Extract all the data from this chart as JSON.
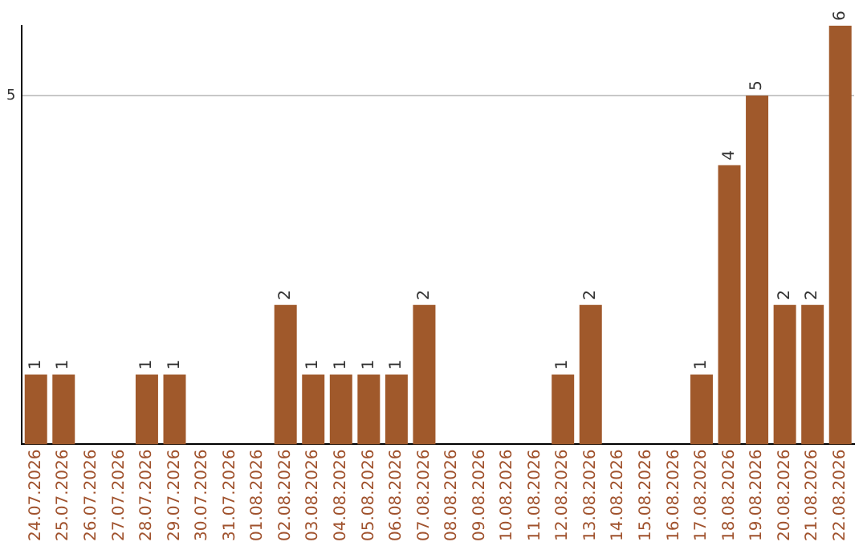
{
  "chart_data": {
    "type": "bar",
    "categories": [
      "24.07.2026",
      "25.07.2026",
      "26.07.2026",
      "27.07.2026",
      "28.07.2026",
      "29.07.2026",
      "30.07.2026",
      "31.07.2026",
      "01.08.2026",
      "02.08.2026",
      "03.08.2026",
      "04.08.2026",
      "05.08.2026",
      "06.08.2026",
      "07.08.2026",
      "08.08.2026",
      "09.08.2026",
      "10.08.2026",
      "11.08.2026",
      "12.08.2026",
      "13.08.2026",
      "14.08.2026",
      "15.08.2026",
      "16.08.2026",
      "17.08.2026",
      "18.08.2026",
      "19.08.2026",
      "20.08.2026",
      "21.08.2026",
      "22.08.2026"
    ],
    "values": [
      1,
      1,
      0,
      0,
      1,
      1,
      0,
      0,
      0,
      2,
      1,
      1,
      1,
      1,
      2,
      0,
      0,
      0,
      0,
      1,
      2,
      0,
      0,
      0,
      1,
      4,
      5,
      2,
      2,
      6
    ],
    "value_labels": [
      "1",
      "1",
      null,
      null,
      "1",
      "1",
      null,
      null,
      null,
      "2",
      "1",
      "1",
      "1",
      "1",
      "2",
      null,
      null,
      null,
      null,
      "1",
      "2",
      null,
      null,
      null,
      "1",
      "4",
      "5",
      "2",
      "2",
      "6"
    ],
    "color": "#a0592b",
    "ylim": [
      0,
      6
    ],
    "yticks": [
      5
    ],
    "grid": "y",
    "legend": false
  }
}
